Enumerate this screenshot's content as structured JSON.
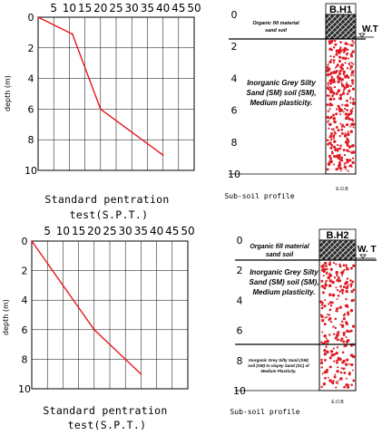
{
  "charts": [
    {
      "id": "spt1",
      "type": "line",
      "x_ticks": [
        "5",
        "10",
        "15",
        "20",
        "25",
        "30",
        "35",
        "40",
        "45",
        "50"
      ],
      "y_ticks": [
        "0",
        "2",
        "4",
        "6",
        "8",
        "10"
      ],
      "ylabel": "depth (m)",
      "xlabel_lines": [
        "Standard pentration",
        "test(S.P.T.)"
      ],
      "xlim": [
        0,
        50
      ],
      "ylim": [
        0,
        10
      ],
      "points": [
        [
          0,
          0
        ],
        [
          11,
          1.1
        ],
        [
          20,
          6
        ],
        [
          40,
          9
        ]
      ],
      "line_color": "#e8161b"
    },
    {
      "id": "spt2",
      "type": "line",
      "x_ticks": [
        "5",
        "10",
        "15",
        "20",
        "25",
        "30",
        "35",
        "40",
        "45",
        "50"
      ],
      "y_ticks": [
        "0",
        "2",
        "4",
        "6",
        "8",
        "10"
      ],
      "ylabel": "depth (m)",
      "xlabel_lines": [
        "Standard pentration",
        "test(S.P.T.)"
      ],
      "xlim": [
        0,
        50
      ],
      "ylim": [
        0,
        10
      ],
      "points": [
        [
          0,
          0
        ],
        [
          20,
          6
        ],
        [
          35,
          9
        ]
      ],
      "line_color": "#e8161b"
    }
  ],
  "profiles": [
    {
      "id": "bh1",
      "borehole": "B.H1",
      "water_table": "W.T",
      "y_ticks": [
        "0",
        "2",
        "4",
        "6",
        "8",
        "10"
      ],
      "title": "Sub-soil profile",
      "end_label": "E.O.B",
      "layers": [
        {
          "lines": [
            "Organic fill material",
            "sand soil"
          ],
          "from": 0,
          "to": 1.5,
          "pattern": "hatch"
        },
        {
          "lines": [
            "Inorganic Grey Silty",
            "Sand (SM) soil (SM),",
            "Medium plasticity."
          ],
          "from": 1.5,
          "to": 10,
          "pattern": "dots"
        }
      ]
    },
    {
      "id": "bh2",
      "borehole": "B.H2",
      "water_table": "W. T",
      "y_ticks": [
        "0",
        "2",
        "4",
        "6",
        "8",
        "10"
      ],
      "title": "Sub-soil profile",
      "end_label": "E.O.B",
      "layers": [
        {
          "lines": [
            "Organic fill material",
            "sand soil"
          ],
          "from": 0,
          "to": 1.5,
          "pattern": "hatch"
        },
        {
          "lines": [
            "Inorganic Grey Silty",
            "Sand (SM) soil (SM),",
            "Medium plasticity."
          ],
          "from": 1.5,
          "to": 7,
          "pattern": "dots"
        },
        {
          "lines": [
            "Inorganic Grey Silty Sand (SM)",
            "soil (SM) to clayey Sand (SC) of",
            "Medium Plasticity."
          ],
          "from": 7,
          "to": 10,
          "pattern": "dots"
        }
      ]
    }
  ],
  "colors": {
    "line": "#e8161b",
    "dots": "#e01b24",
    "ink": "#000000"
  }
}
